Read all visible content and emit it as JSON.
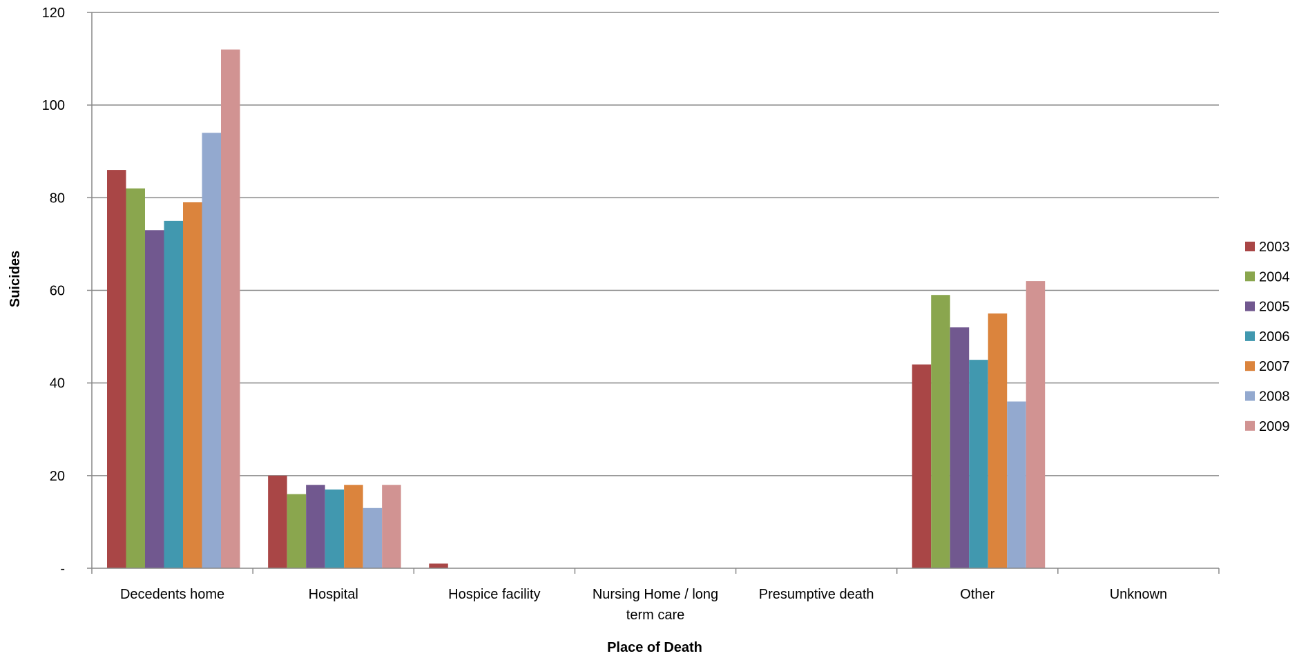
{
  "chart_data": {
    "type": "bar",
    "title": "",
    "xlabel": "Place of Death",
    "ylabel": "Suicides",
    "ylim": [
      0,
      120
    ],
    "yticks": [
      {
        "value": 0,
        "label": "-"
      },
      {
        "value": 20,
        "label": "20"
      },
      {
        "value": 40,
        "label": "40"
      },
      {
        "value": 60,
        "label": "60"
      },
      {
        "value": 80,
        "label": "80"
      },
      {
        "value": 100,
        "label": "100"
      },
      {
        "value": 120,
        "label": "120"
      }
    ],
    "grid": true,
    "legend_position": "right",
    "categories": [
      [
        "Decedents home"
      ],
      [
        "Hospital"
      ],
      [
        "Hospice facility"
      ],
      [
        "Nursing Home / long",
        "term care"
      ],
      [
        "Presumptive death"
      ],
      [
        "Other"
      ],
      [
        "Unknown"
      ]
    ],
    "series": [
      {
        "name": "2003",
        "color": "#A94646",
        "values": [
          86,
          20,
          1,
          0,
          0,
          44,
          0
        ]
      },
      {
        "name": "2004",
        "color": "#8AA64E",
        "values": [
          82,
          16,
          0,
          0,
          0,
          59,
          0
        ]
      },
      {
        "name": "2005",
        "color": "#71588F",
        "values": [
          73,
          18,
          0,
          0,
          0,
          52,
          0
        ]
      },
      {
        "name": "2006",
        "color": "#4198AF",
        "values": [
          75,
          17,
          0,
          0,
          0,
          45,
          0
        ]
      },
      {
        "name": "2007",
        "color": "#DB843D",
        "values": [
          79,
          18,
          0,
          0,
          0,
          55,
          0
        ]
      },
      {
        "name": "2008",
        "color": "#93A9CF",
        "values": [
          94,
          13,
          0,
          0,
          0,
          36,
          0
        ]
      },
      {
        "name": "2009",
        "color": "#D19392",
        "values": [
          112,
          18,
          0,
          0,
          0,
          62,
          0
        ]
      }
    ]
  }
}
